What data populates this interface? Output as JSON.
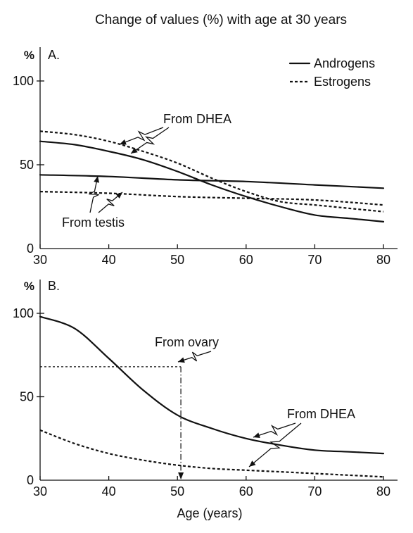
{
  "chart_data": [
    {
      "type": "line",
      "title": "Change of values (%) with age at 30 years",
      "panel_label": "A.",
      "ylabel": "%",
      "xlabel": "",
      "xlim": [
        30,
        80
      ],
      "ylim": [
        0,
        100
      ],
      "xticks": [
        30,
        40,
        50,
        60,
        70,
        80
      ],
      "yticks": [
        0,
        50,
        100
      ],
      "grid": false,
      "legend_position": "top-right",
      "legend": [
        {
          "label": "Androgens",
          "style": "solid"
        },
        {
          "label": "Estrogens",
          "style": "dashed"
        }
      ],
      "series": [
        {
          "group": "Androgens",
          "style": "solid",
          "x": [
            30,
            35,
            40,
            45,
            50,
            55,
            60,
            65,
            70,
            75,
            80
          ],
          "y": [
            64,
            62,
            58,
            53,
            46,
            38,
            31,
            25,
            20,
            18,
            16
          ]
        },
        {
          "group": "Androgens",
          "style": "solid",
          "x": [
            30,
            40,
            50,
            60,
            70,
            80
          ],
          "y": [
            44,
            43,
            41,
            40,
            38,
            36
          ]
        },
        {
          "group": "Estrogens",
          "style": "dashed",
          "x": [
            30,
            35,
            40,
            45,
            50,
            55,
            60,
            65,
            70,
            75,
            80
          ],
          "y": [
            70,
            68,
            64,
            58,
            51,
            42,
            34,
            28,
            26,
            24,
            22
          ]
        },
        {
          "group": "Estrogens",
          "style": "dashed",
          "x": [
            30,
            40,
            50,
            60,
            70,
            80
          ],
          "y": [
            34,
            33,
            31,
            30,
            29,
            26
          ]
        }
      ],
      "annotations": [
        {
          "text": "From DHEA"
        },
        {
          "text": "From testis"
        }
      ]
    },
    {
      "type": "line",
      "panel_label": "B.",
      "ylabel": "%",
      "xlabel": "Age (years)",
      "xlim": [
        30,
        80
      ],
      "ylim": [
        0,
        100
      ],
      "xticks": [
        30,
        40,
        50,
        60,
        70,
        80
      ],
      "yticks": [
        0,
        50,
        100
      ],
      "grid": false,
      "series": [
        {
          "group": "Androgens",
          "style": "solid",
          "x": [
            30,
            35,
            40,
            45,
            50,
            55,
            60,
            65,
            70,
            75,
            80
          ],
          "y": [
            98,
            91,
            73,
            54,
            39,
            31,
            25,
            21,
            18,
            17,
            16
          ]
        },
        {
          "group": "Estrogens",
          "style": "dashed",
          "x": [
            30,
            35,
            40,
            45,
            50,
            55,
            60,
            65,
            70,
            75,
            80
          ],
          "y": [
            30,
            22,
            16,
            12,
            9,
            7,
            6,
            5,
            4,
            3,
            2
          ]
        }
      ],
      "reference_lines": {
        "ovary_level": 68,
        "ovary_x_range": [
          30,
          50.5
        ],
        "drop_x": 50.5
      },
      "annotations": [
        {
          "text": "From ovary"
        },
        {
          "text": "From DHEA"
        }
      ]
    }
  ]
}
